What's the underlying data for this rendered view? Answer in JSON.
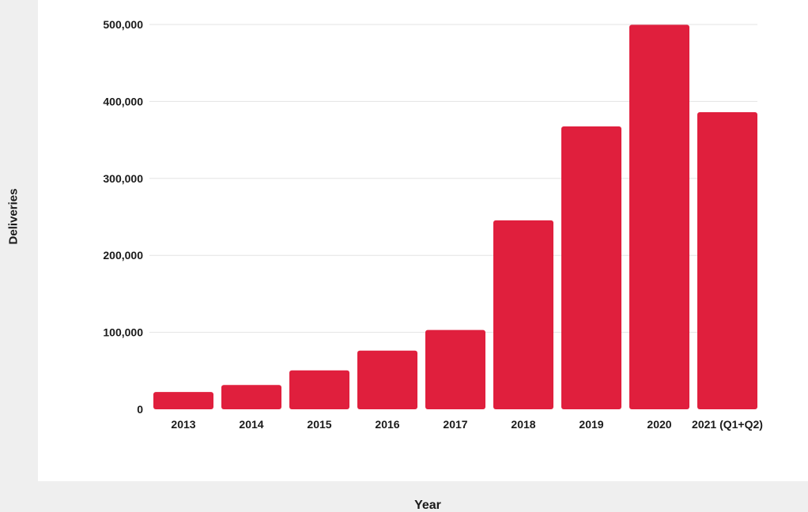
{
  "chart_data": {
    "type": "bar",
    "xlabel": "Year",
    "ylabel": "Deliveries",
    "categories": [
      "2013",
      "2014",
      "2015",
      "2016",
      "2017",
      "2018",
      "2019",
      "2020",
      "2021 (Q1+Q2)"
    ],
    "values": [
      22500,
      31600,
      50600,
      76200,
      103000,
      245500,
      367500,
      499600,
      386000
    ],
    "ylim": [
      0,
      500000
    ],
    "yticks": [
      0,
      100000,
      200000,
      300000,
      400000,
      500000
    ],
    "ytick_labels": [
      "0",
      "100,000",
      "200,000",
      "300,000",
      "400,000",
      "500,000"
    ],
    "grid": true,
    "bar_color": "#e01f3d"
  }
}
